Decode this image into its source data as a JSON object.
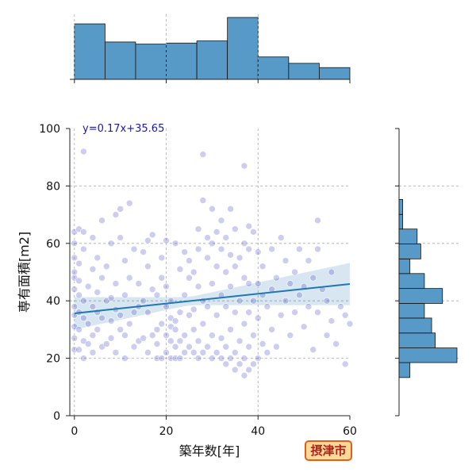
{
  "badge": "摂津市",
  "chart_data": {
    "type": "scatter",
    "title": "",
    "xlabel": "築年数[年]",
    "ylabel": "専有面積[m2]",
    "xlim": [
      -1,
      60
    ],
    "ylim": [
      0,
      100
    ],
    "xticks": [
      0,
      20,
      40,
      60
    ],
    "yticks": [
      0,
      20,
      40,
      60,
      80,
      100
    ],
    "grid": true,
    "regression": {
      "label": "y=0.17x+35.65",
      "slope": 0.17,
      "intercept": 35.65,
      "color": "#1f77b4"
    },
    "point_color": "#4a4ac8",
    "bar_color": "#5799c7",
    "x_histogram": {
      "bin_edges": [
        0,
        6.67,
        13.33,
        20,
        26.67,
        33.33,
        40,
        46.67,
        53.33,
        60
      ],
      "counts": [
        52,
        35,
        33,
        34,
        36,
        58,
        21,
        15,
        11
      ]
    },
    "y_histogram": {
      "bin_edges": [
        13.3,
        18.5,
        23.6,
        28.8,
        34,
        39.1,
        44.3,
        49.5,
        54.6,
        59.8,
        65,
        70.1,
        75.3,
        80.5,
        85.6,
        90.8,
        96
      ],
      "counts": [
        3,
        16,
        10,
        9,
        7,
        12,
        7,
        3,
        6,
        5,
        1,
        1,
        0,
        0,
        0,
        0
      ]
    },
    "points": [
      [
        0,
        23
      ],
      [
        0,
        27
      ],
      [
        0,
        31
      ],
      [
        0,
        35
      ],
      [
        0,
        38
      ],
      [
        0,
        44
      ],
      [
        0,
        48
      ],
      [
        0,
        50
      ],
      [
        0,
        55
      ],
      [
        0,
        60
      ],
      [
        0,
        64
      ],
      [
        1,
        23
      ],
      [
        1,
        30
      ],
      [
        1,
        36
      ],
      [
        1,
        42
      ],
      [
        1,
        47
      ],
      [
        1,
        53
      ],
      [
        1,
        65
      ],
      [
        2,
        64
      ],
      [
        2,
        92
      ],
      [
        2,
        20
      ],
      [
        2,
        26
      ],
      [
        2,
        34
      ],
      [
        2,
        40
      ],
      [
        2,
        58
      ],
      [
        3,
        25
      ],
      [
        3,
        32
      ],
      [
        3,
        45
      ],
      [
        4,
        22
      ],
      [
        4,
        28
      ],
      [
        4,
        38
      ],
      [
        4,
        51
      ],
      [
        4,
        62
      ],
      [
        5,
        30
      ],
      [
        5,
        36
      ],
      [
        5,
        43
      ],
      [
        5,
        55
      ],
      [
        6,
        24
      ],
      [
        6,
        34
      ],
      [
        6,
        48
      ],
      [
        6,
        68
      ],
      [
        7,
        25
      ],
      [
        7,
        40
      ],
      [
        7,
        52
      ],
      [
        8,
        27
      ],
      [
        8,
        33
      ],
      [
        8,
        41
      ],
      [
        8,
        60
      ],
      [
        9,
        22
      ],
      [
        9,
        37
      ],
      [
        9,
        46
      ],
      [
        9,
        70
      ],
      [
        10,
        30
      ],
      [
        10,
        35
      ],
      [
        10,
        62
      ],
      [
        10,
        72
      ],
      [
        11,
        20
      ],
      [
        11,
        28
      ],
      [
        11,
        42
      ],
      [
        11,
        54
      ],
      [
        12,
        32
      ],
      [
        12,
        48
      ],
      [
        12,
        74
      ],
      [
        13,
        24
      ],
      [
        13,
        36
      ],
      [
        13,
        58
      ],
      [
        14,
        26
      ],
      [
        14,
        38
      ],
      [
        14,
        46
      ],
      [
        15,
        27
      ],
      [
        15,
        40
      ],
      [
        15,
        57
      ],
      [
        16,
        22
      ],
      [
        16,
        36
      ],
      [
        16,
        52
      ],
      [
        16,
        61
      ],
      [
        17,
        28
      ],
      [
        17,
        44
      ],
      [
        17,
        63
      ],
      [
        18,
        20
      ],
      [
        18,
        25
      ],
      [
        18,
        30
      ],
      [
        18,
        42
      ],
      [
        19,
        20
      ],
      [
        19,
        32
      ],
      [
        19,
        48
      ],
      [
        19,
        55
      ],
      [
        20,
        22
      ],
      [
        20,
        28
      ],
      [
        20,
        38
      ],
      [
        20,
        45
      ],
      [
        20,
        61
      ],
      [
        21,
        20
      ],
      [
        21,
        26
      ],
      [
        21,
        31
      ],
      [
        21,
        34
      ],
      [
        21,
        40
      ],
      [
        22,
        20
      ],
      [
        22,
        24
      ],
      [
        22,
        30
      ],
      [
        22,
        33
      ],
      [
        22,
        60
      ],
      [
        23,
        20
      ],
      [
        23,
        26
      ],
      [
        23,
        36
      ],
      [
        23,
        51
      ],
      [
        24,
        22
      ],
      [
        24,
        28
      ],
      [
        24,
        42
      ],
      [
        24,
        57
      ],
      [
        25,
        24
      ],
      [
        25,
        35
      ],
      [
        25,
        48
      ],
      [
        25,
        54
      ],
      [
        26,
        22
      ],
      [
        26,
        30
      ],
      [
        26,
        37
      ],
      [
        26,
        50
      ],
      [
        27,
        20
      ],
      [
        27,
        26
      ],
      [
        27,
        45
      ],
      [
        27,
        58
      ],
      [
        27,
        65
      ],
      [
        28,
        22
      ],
      [
        28,
        32
      ],
      [
        28,
        40
      ],
      [
        28,
        75
      ],
      [
        28,
        91
      ],
      [
        29,
        24
      ],
      [
        29,
        38
      ],
      [
        29,
        55
      ],
      [
        29,
        62
      ],
      [
        30,
        20
      ],
      [
        30,
        28
      ],
      [
        30,
        46
      ],
      [
        30,
        60
      ],
      [
        30,
        72
      ],
      [
        31,
        22
      ],
      [
        31,
        35
      ],
      [
        31,
        52
      ],
      [
        31,
        64
      ],
      [
        32,
        20
      ],
      [
        32,
        27
      ],
      [
        32,
        42
      ],
      [
        32,
        58
      ],
      [
        32,
        68
      ],
      [
        33,
        18
      ],
      [
        33,
        24
      ],
      [
        33,
        38
      ],
      [
        33,
        50
      ],
      [
        33,
        62
      ],
      [
        34,
        20
      ],
      [
        34,
        30
      ],
      [
        34,
        45
      ],
      [
        34,
        56
      ],
      [
        34,
        72
      ],
      [
        35,
        16
      ],
      [
        35,
        22
      ],
      [
        35,
        36
      ],
      [
        35,
        52
      ],
      [
        35,
        65
      ],
      [
        36,
        18
      ],
      [
        36,
        26
      ],
      [
        36,
        40
      ],
      [
        36,
        55
      ],
      [
        37,
        14
      ],
      [
        37,
        20
      ],
      [
        37,
        32
      ],
      [
        37,
        48
      ],
      [
        37,
        60
      ],
      [
        37,
        87
      ],
      [
        38,
        16
      ],
      [
        38,
        24
      ],
      [
        38,
        36
      ],
      [
        38,
        46
      ],
      [
        38,
        58
      ],
      [
        38,
        66
      ],
      [
        39,
        18
      ],
      [
        39,
        28
      ],
      [
        39,
        40
      ],
      [
        39,
        64
      ],
      [
        40,
        20
      ],
      [
        40,
        34
      ],
      [
        40,
        46
      ],
      [
        40,
        57
      ],
      [
        41,
        25
      ],
      [
        41,
        42
      ],
      [
        41,
        52
      ],
      [
        42,
        22
      ],
      [
        42,
        38
      ],
      [
        43,
        30
      ],
      [
        43,
        44
      ],
      [
        43,
        58
      ],
      [
        44,
        24
      ],
      [
        44,
        48
      ],
      [
        45,
        35
      ],
      [
        45,
        62
      ],
      [
        46,
        40
      ],
      [
        46,
        54
      ],
      [
        47,
        28
      ],
      [
        47,
        46
      ],
      [
        48,
        36
      ],
      [
        48,
        50
      ],
      [
        49,
        42
      ],
      [
        49,
        58
      ],
      [
        50,
        31
      ],
      [
        50,
        45
      ],
      [
        51,
        38
      ],
      [
        51,
        54
      ],
      [
        52,
        23
      ],
      [
        52,
        48
      ],
      [
        53,
        36
      ],
      [
        53,
        58
      ],
      [
        53,
        68
      ],
      [
        54,
        44
      ],
      [
        55,
        28
      ],
      [
        55,
        40
      ],
      [
        56,
        33
      ],
      [
        56,
        50
      ],
      [
        57,
        25
      ],
      [
        58,
        38
      ],
      [
        59,
        18
      ],
      [
        59,
        35
      ],
      [
        60,
        32
      ]
    ]
  }
}
